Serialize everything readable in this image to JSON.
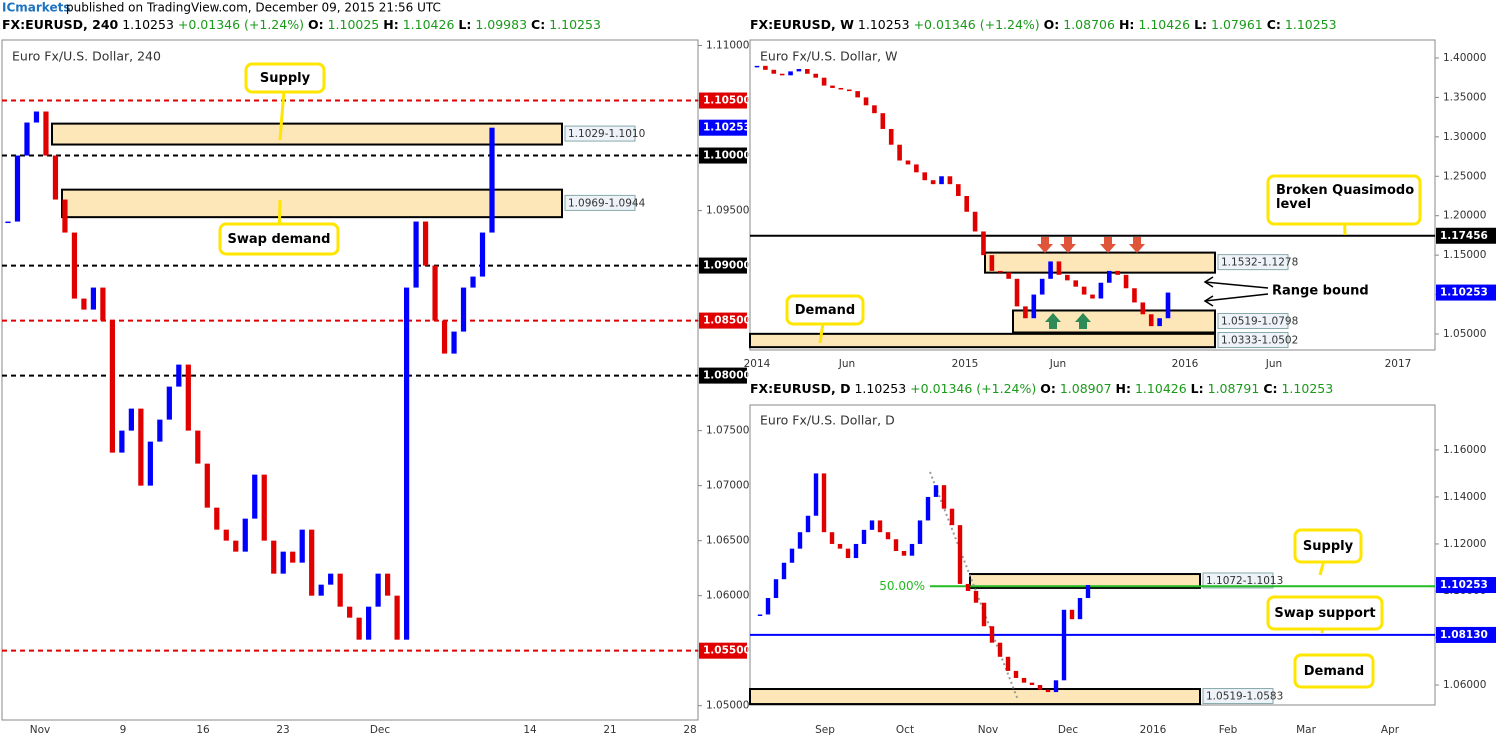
{
  "header": {
    "publisher": "ICmarkets",
    "text": "published on TradingView.com, December 09, 2015 21:56 UTC"
  },
  "chart_data": [
    {
      "type": "candlestick",
      "symbol": "FX:EURUSD, 240",
      "title": "Euro Fx/U.S. Dollar, 240",
      "change": "+0.01346 (+1.24%)",
      "ohlc": [
        "O:",
        "1.10025",
        "H:",
        "1.10426",
        "L:",
        "1.09983",
        "C:",
        "1.10253"
      ],
      "last_price": {
        "value": 1.10253,
        "label": "1.10253",
        "color": "#0000ff"
      },
      "ylim": [
        1.0487,
        1.1105
      ],
      "yticks": [
        {
          "value": 1.11,
          "label": "1.11000"
        },
        {
          "value": 1.105,
          "label": "1.10500"
        },
        {
          "value": 1.1,
          "label": "1.10000"
        },
        {
          "value": 1.095,
          "label": "1.09500"
        },
        {
          "value": 1.09,
          "label": "1.09000"
        },
        {
          "value": 1.085,
          "label": "1.08500"
        },
        {
          "value": 1.08,
          "label": "1.08000"
        },
        {
          "value": 1.075,
          "label": "1.07500"
        },
        {
          "value": 1.07,
          "label": "1.07000"
        },
        {
          "value": 1.065,
          "label": "1.06500"
        },
        {
          "value": 1.06,
          "label": "1.06000"
        },
        {
          "value": 1.055,
          "label": "1.05500"
        },
        {
          "value": 1.05,
          "label": "1.05000"
        }
      ],
      "x_labels": [
        "Nov",
        "9",
        "16",
        "23",
        "Dec",
        "14",
        "21",
        "28"
      ],
      "values": [
        1.094,
        1.1,
        1.103,
        1.104,
        1.1,
        1.096,
        1.093,
        1.087,
        1.086,
        1.088,
        1.085,
        1.073,
        1.075,
        1.077,
        1.07,
        1.074,
        1.076,
        1.079,
        1.081,
        1.075,
        1.072,
        1.068,
        1.066,
        1.065,
        1.064,
        1.067,
        1.071,
        1.065,
        1.062,
        1.064,
        1.063,
        1.066,
        1.06,
        1.061,
        1.062,
        1.059,
        1.058,
        1.056,
        1.059,
        1.062,
        1.06,
        1.056,
        1.088,
        1.094,
        1.09,
        1.085,
        1.082,
        1.084,
        1.088,
        1.089,
        1.093,
        1.10253
      ],
      "up_color": "#0000ff",
      "down_color": "#e00000",
      "levels": [
        {
          "value": 1.105,
          "label": "1.10500",
          "color": "#e00000",
          "style": "dashed"
        },
        {
          "value": 1.1,
          "label": "1.10000",
          "color": "#000000",
          "style": "dashed"
        },
        {
          "value": 1.09,
          "label": "1.09000",
          "color": "#000000",
          "style": "dashed"
        },
        {
          "value": 1.085,
          "label": "1.08500",
          "color": "#e00000",
          "style": "dashed"
        },
        {
          "value": 1.08,
          "label": "1.08000",
          "color": "#000000",
          "style": "dashed"
        },
        {
          "value": 1.055,
          "label": "1.05500",
          "color": "#e00000",
          "style": "dashed"
        }
      ],
      "zones": [
        {
          "label": "1.1029-1.1010",
          "values": [
            1.1029,
            1.101
          ]
        },
        {
          "label": "1.0969-1.0944",
          "values": [
            1.0969,
            1.0944
          ]
        }
      ],
      "annotations": [
        "Supply",
        "Swap demand"
      ]
    },
    {
      "type": "candlestick",
      "symbol": "FX:EURUSD, W",
      "title": "Euro Fx/U.S. Dollar, W",
      "change": "+0.01346 (+1.24%)",
      "ohlc": [
        "O:",
        "1.08706",
        "H:",
        "1.10426",
        "L:",
        "1.07961",
        "C:",
        "1.10253"
      ],
      "last_price": {
        "value": 1.10253,
        "label": "1.10253",
        "color": "#0000ff"
      },
      "ylim": [
        1.0297,
        1.4228
      ],
      "yticks": [
        {
          "value": 1.4,
          "label": "1.40000"
        },
        {
          "value": 1.35,
          "label": "1.35000"
        },
        {
          "value": 1.3,
          "label": "1.30000"
        },
        {
          "value": 1.25,
          "label": "1.25000"
        },
        {
          "value": 1.2,
          "label": "1.20000"
        },
        {
          "value": 1.15,
          "label": "1.15000"
        },
        {
          "value": 1.1,
          "label": "1.10000"
        },
        {
          "value": 1.05,
          "label": "1.05000"
        }
      ],
      "x_labels": [
        "2014",
        "Jun",
        "2015",
        "Jun",
        "2016",
        "Jun",
        "2017"
      ],
      "values": [
        1.39,
        1.385,
        1.38,
        1.378,
        1.383,
        1.386,
        1.38,
        1.375,
        1.365,
        1.362,
        1.36,
        1.358,
        1.35,
        1.34,
        1.33,
        1.31,
        1.29,
        1.27,
        1.265,
        1.255,
        1.245,
        1.24,
        1.25,
        1.24,
        1.225,
        1.205,
        1.18,
        1.15,
        1.13,
        1.128,
        1.12,
        1.085,
        1.07,
        1.1,
        1.12,
        1.142,
        1.125,
        1.118,
        1.11,
        1.1,
        1.095,
        1.115,
        1.13,
        1.125,
        1.108,
        1.09,
        1.075,
        1.06,
        1.07,
        1.10253
      ],
      "up_color": "#0000ff",
      "down_color": "#e00000",
      "levels": [
        {
          "value": 1.17456,
          "label": "1.17456",
          "color": "#000000",
          "style": "solid"
        }
      ],
      "zones": [
        {
          "label": "1.1532-1.1278",
          "values": [
            1.1532,
            1.1278
          ]
        },
        {
          "label": "1.0519-1.0798",
          "values": [
            1.0519,
            1.0798
          ]
        },
        {
          "label": "1.0333-1.0502",
          "values": [
            1.0333,
            1.0502
          ]
        }
      ],
      "annotations": [
        "Broken Quasimodo level",
        "Range bound",
        "Demand"
      ]
    },
    {
      "type": "candlestick",
      "symbol": "FX:EURUSD, D",
      "title": "Euro Fx/U.S. Dollar, D",
      "change": "+0.01346 (+1.24%)",
      "ohlc": [
        "O:",
        "1.08907",
        "H:",
        "1.10426",
        "L:",
        "1.08791",
        "C:",
        "1.10253"
      ],
      "last_price": {
        "value": 1.10253,
        "label": "1.10253",
        "color": "#0000ff"
      },
      "ylim": [
        1.0515,
        1.1791
      ],
      "yticks": [
        {
          "value": 1.16,
          "label": "1.16000"
        },
        {
          "value": 1.14,
          "label": "1.14000"
        },
        {
          "value": 1.12,
          "label": "1.12000"
        },
        {
          "value": 1.1,
          "label": "1.10000"
        },
        {
          "value": 1.08,
          "label": "1.08000"
        },
        {
          "value": 1.06,
          "label": "1.06000"
        }
      ],
      "x_labels": [
        "Sep",
        "Oct",
        "Nov",
        "Dec",
        "2016",
        "Feb",
        "Mar",
        "Apr"
      ],
      "values": [
        1.09,
        1.097,
        1.105,
        1.112,
        1.118,
        1.125,
        1.132,
        1.15,
        1.125,
        1.12,
        1.118,
        1.114,
        1.12,
        1.126,
        1.13,
        1.125,
        1.122,
        1.117,
        1.115,
        1.12,
        1.13,
        1.14,
        1.145,
        1.135,
        1.128,
        1.103,
        1.1,
        1.095,
        1.085,
        1.078,
        1.072,
        1.066,
        1.063,
        1.061,
        1.06,
        1.058,
        1.057,
        1.062,
        1.092,
        1.088,
        1.097,
        1.10253
      ],
      "up_color": "#0000ff",
      "down_color": "#e00000",
      "levels": [
        {
          "value": 1.0813,
          "label": "1.08130",
          "color": "#0000ff",
          "style": "solid"
        }
      ],
      "fib": {
        "value": 1.102,
        "label": "50.00%",
        "color": "#22bb22"
      },
      "zones": [
        {
          "label": "1.1072-1.1013",
          "values": [
            1.1072,
            1.1013
          ]
        },
        {
          "label": "1.0519-1.0583",
          "values": [
            1.0519,
            1.0583
          ]
        }
      ],
      "annotations": [
        "Supply",
        "Swap support",
        "Demand"
      ]
    }
  ]
}
